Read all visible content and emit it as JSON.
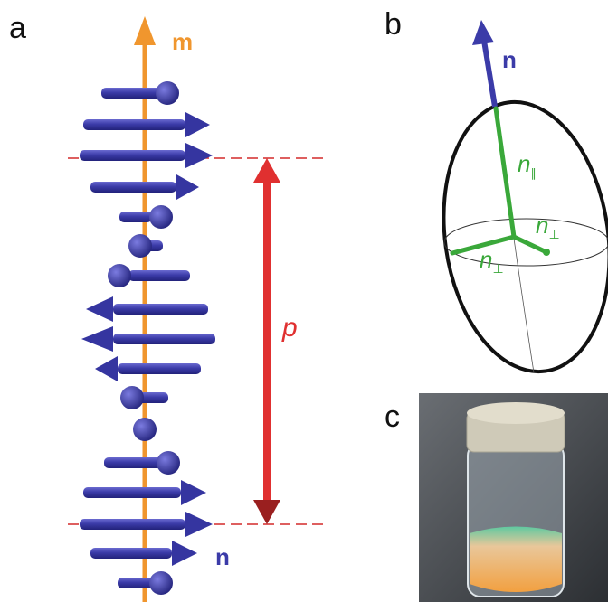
{
  "panels": [
    {
      "label": "a",
      "axis_label": "m",
      "pitch_label": "p",
      "director_label": "n"
    },
    {
      "label": "b",
      "director_label": "n",
      "parallel_label": {
        "base": "n",
        "sub": "∥"
      },
      "perp_labels": [
        {
          "base": "n",
          "sub": "⊥"
        },
        {
          "base": "n",
          "sub": "⊥"
        }
      ]
    },
    {
      "label": "c"
    }
  ]
}
